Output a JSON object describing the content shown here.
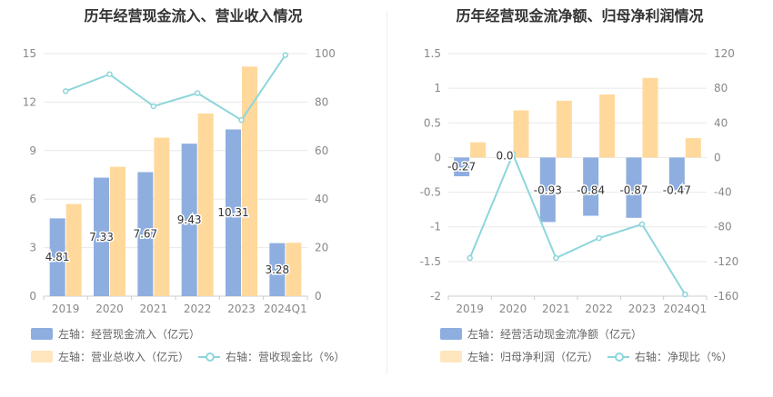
{
  "colors": {
    "bar1": "#8eaee0",
    "bar2": "#ffd99c",
    "line": "#8dd6db",
    "grid": "#e8e8e8",
    "axis_text": "#888888"
  },
  "chart_data": [
    {
      "type": "bar",
      "title": "历年经营现金流入、营业收入情况",
      "categories": [
        "2019",
        "2020",
        "2021",
        "2022",
        "2023",
        "2024Q1"
      ],
      "series": [
        {
          "name": "左轴：经营现金流入（亿元）",
          "axis": "left",
          "kind": "bar",
          "values": [
            4.81,
            7.33,
            7.67,
            9.43,
            10.31,
            3.28
          ],
          "labels": [
            "4.81",
            "7.33",
            "7.67",
            "9.43",
            "10.31",
            "3.28"
          ]
        },
        {
          "name": "左轴：营业总收入（亿元）",
          "axis": "left",
          "kind": "bar",
          "values": [
            5.7,
            8.0,
            9.8,
            11.3,
            14.2,
            3.3
          ]
        },
        {
          "name": "右轴：营收现金比（%）",
          "axis": "right",
          "kind": "line",
          "values": [
            84.5,
            91.5,
            78.3,
            83.7,
            72.6,
            99.4
          ]
        }
      ],
      "left_axis": {
        "min": 0,
        "max": 15,
        "ticks": [
          "0",
          "3",
          "6",
          "9",
          "12",
          "15"
        ]
      },
      "right_axis": {
        "min": 0,
        "max": 100,
        "ticks": [
          "0",
          "20",
          "40",
          "60",
          "80",
          "100"
        ]
      },
      "grid": true,
      "legend_position": "bottom"
    },
    {
      "type": "bar",
      "title": "历年经营现金流净额、归母净利润情况",
      "categories": [
        "2019",
        "2020",
        "2021",
        "2022",
        "2023",
        "2024Q1"
      ],
      "series": [
        {
          "name": "左轴：经营活动现金流净额（亿元）",
          "axis": "left",
          "kind": "bar",
          "values": [
            -0.27,
            0.0,
            -0.93,
            -0.84,
            -0.87,
            -0.47
          ],
          "labels": [
            "-0.27",
            "0.0",
            "-0.93",
            "-0.84",
            "-0.87",
            "-0.47"
          ]
        },
        {
          "name": "左轴：归母净利润（亿元）",
          "axis": "left",
          "kind": "bar",
          "values": [
            0.22,
            0.68,
            0.82,
            0.91,
            1.15,
            0.28
          ]
        },
        {
          "name": "右轴：净现比（%）",
          "axis": "right",
          "kind": "line",
          "values": [
            -116,
            4,
            -116,
            -93,
            -77,
            -158
          ]
        }
      ],
      "left_axis": {
        "min": -2,
        "max": 1.5,
        "ticks": [
          "-2",
          "-1.5",
          "-1",
          "-0.5",
          "0",
          "0.5",
          "1",
          "1.5"
        ]
      },
      "right_axis": {
        "min": -160,
        "max": 120,
        "ticks": [
          "-160",
          "-120",
          "-80",
          "-40",
          "0",
          "40",
          "80",
          "120"
        ]
      },
      "grid": true,
      "legend_position": "bottom"
    }
  ]
}
